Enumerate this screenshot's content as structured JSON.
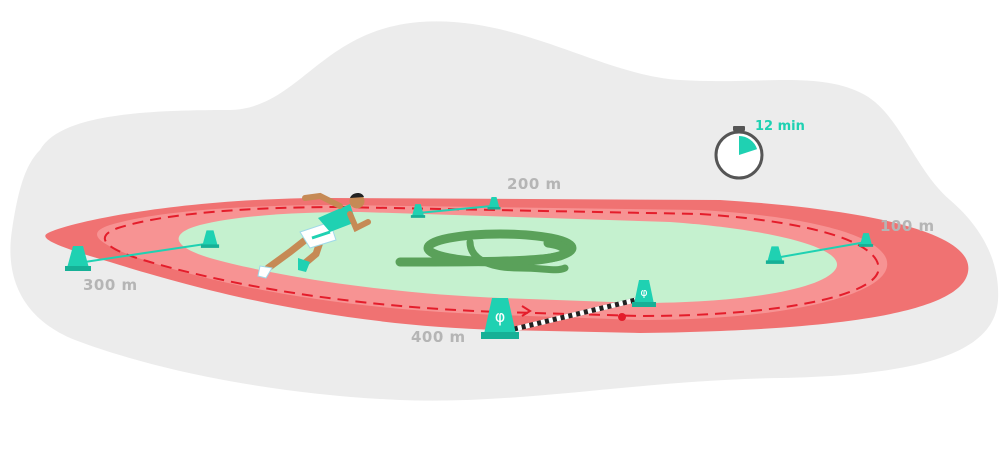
{
  "timer": {
    "label": "12 min",
    "fraction": 0.2
  },
  "distances": {
    "d100": "100 m",
    "d200": "200 m",
    "d300": "300 m",
    "d400": "400 m"
  },
  "cones": {
    "symbol": "φ"
  },
  "colors": {
    "background_blob": "#ececec",
    "track_outer": "#f07272",
    "track_inner": "#f79393",
    "infield": "#c5f1cf",
    "infield_logo": "#5aa15a",
    "accent": "#1fd1b2",
    "dash_line": "#e41d2b",
    "label_gray": "#b5b5b5"
  },
  "icons": [
    "stopwatch-icon",
    "traffic-cone-icon",
    "runner-figure",
    "brand-logo"
  ]
}
